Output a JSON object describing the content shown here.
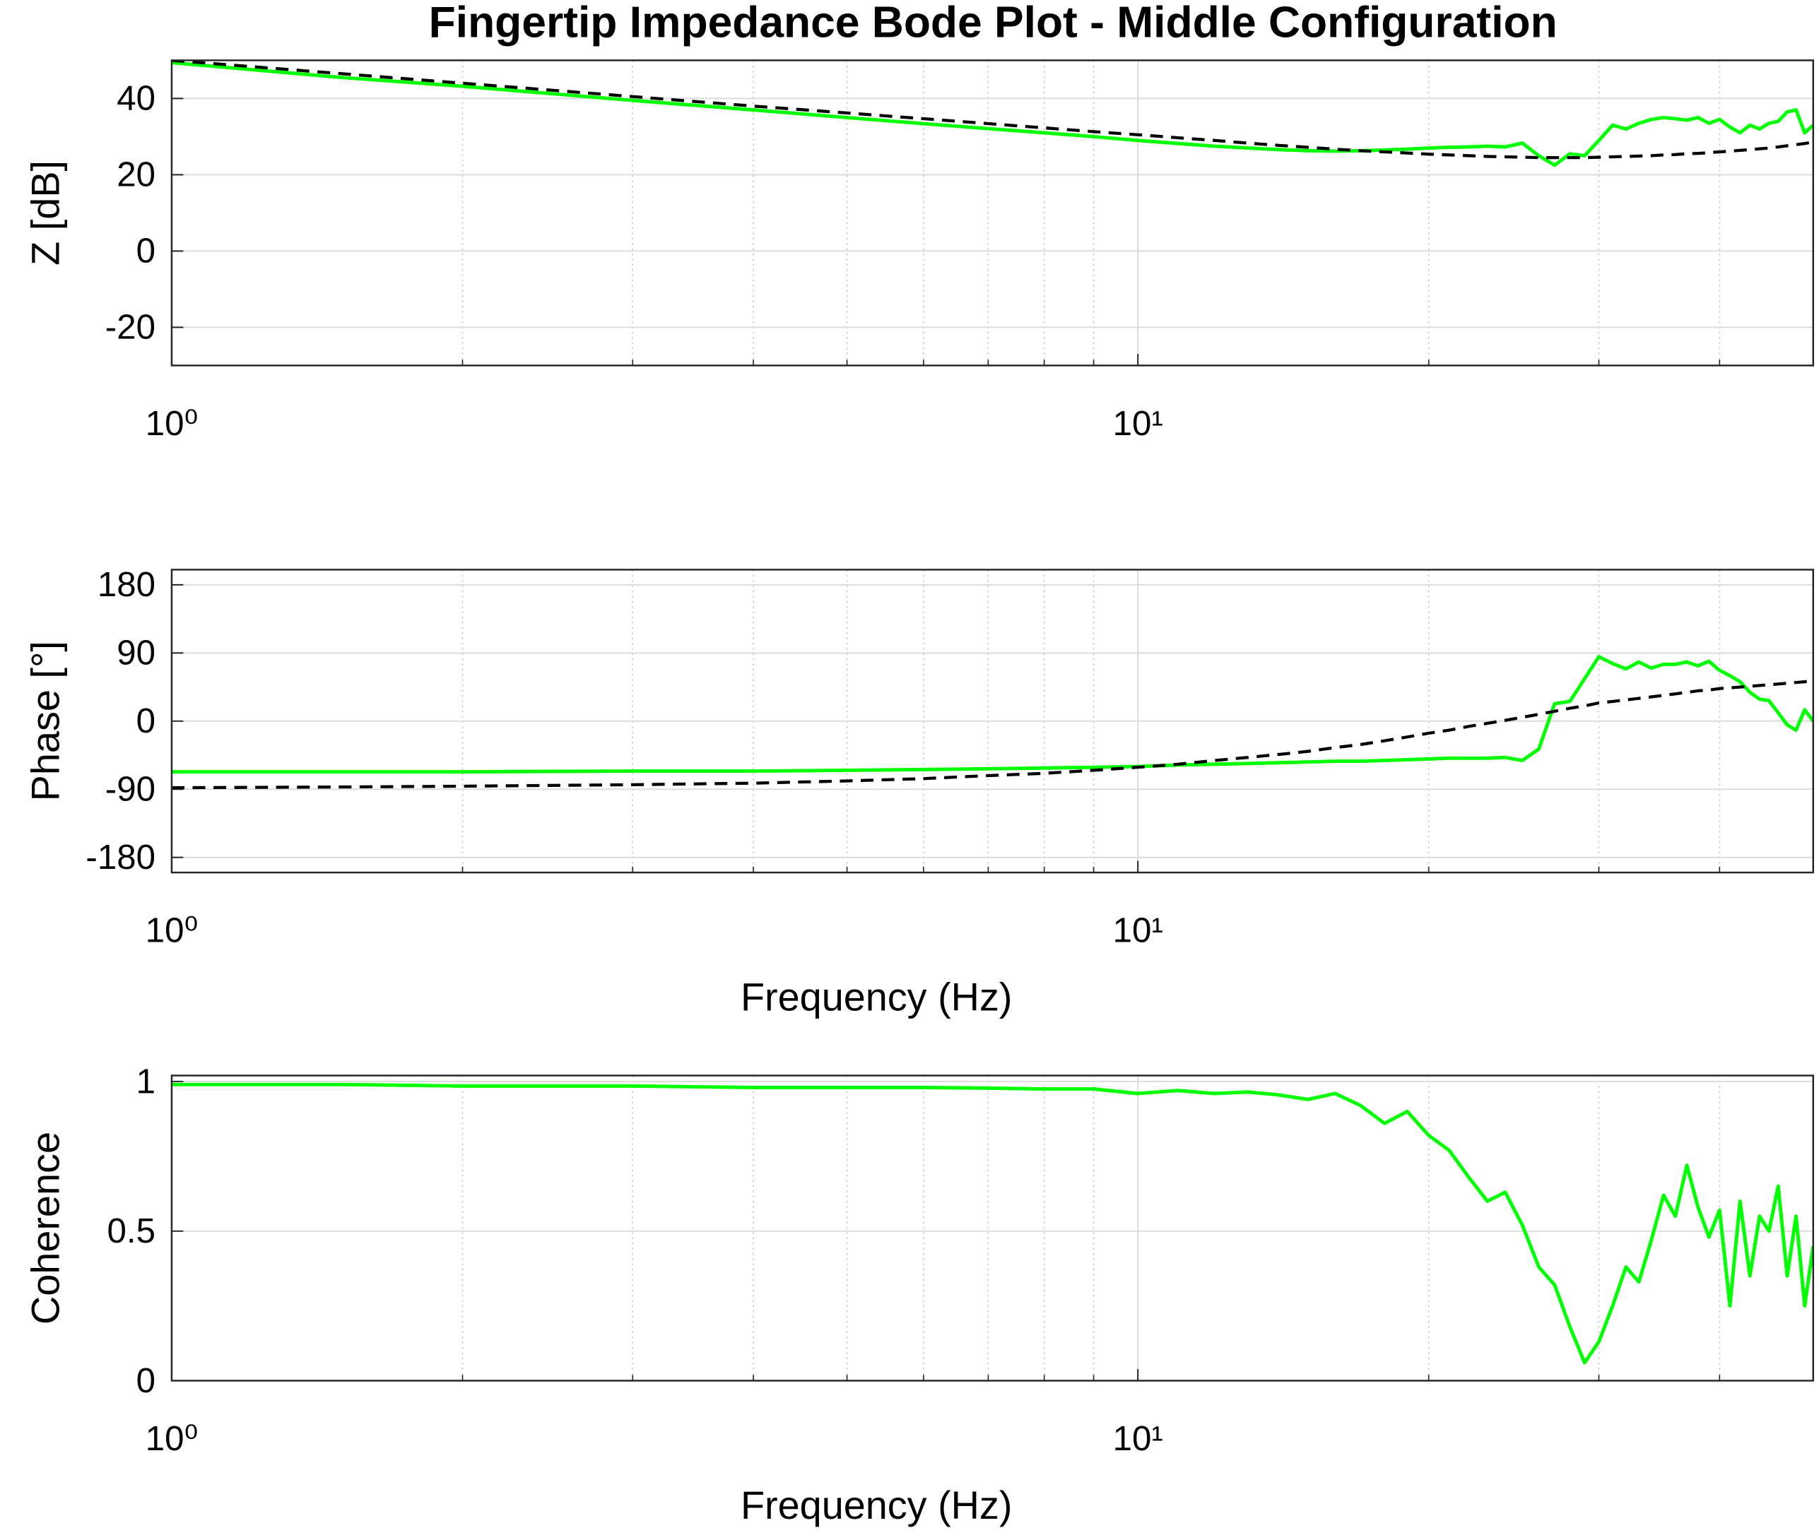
{
  "chart_data": [
    {
      "type": "line",
      "title": "Fingertip Impedance Bode Plot - Middle Configuration",
      "ylabel": "Z [dB]",
      "log_x": true,
      "grid": true,
      "xlim": [
        1,
        50
      ],
      "xticks": [
        {
          "value": 1,
          "label": "10⁰"
        },
        {
          "value": 10,
          "label": "10¹"
        }
      ],
      "xminorticks": [
        2,
        3,
        4,
        5,
        6,
        7,
        8,
        9,
        20,
        30,
        40
      ],
      "ylim": [
        -30,
        50
      ],
      "yticks": [
        -20,
        0,
        20,
        40
      ],
      "x": [
        1,
        1.5,
        2,
        3,
        4,
        5,
        6,
        7,
        8,
        9,
        10,
        11,
        12,
        13,
        14,
        15,
        16,
        17,
        18,
        19,
        20,
        21,
        22,
        23,
        24,
        25,
        26,
        27,
        28,
        29,
        30,
        31,
        32,
        33,
        34,
        35,
        36,
        37,
        38,
        39,
        40,
        41,
        42,
        43,
        44,
        45,
        46,
        47,
        48,
        49,
        50
      ],
      "series": [
        {
          "color": "#00ff00",
          "values": [
            49.4,
            45.5,
            43.2,
            39.5,
            37,
            35,
            33.4,
            32.1,
            31,
            30,
            29,
            28.2,
            27.5,
            27,
            26.6,
            26.3,
            26.2,
            26.3,
            26.5,
            26.7,
            27,
            27.2,
            27.3,
            27.5,
            27.3,
            28.3,
            25,
            22.5,
            25.5,
            25,
            29,
            33,
            32,
            33.5,
            34.5,
            35,
            34.7,
            34.3,
            35,
            33.5,
            34.5,
            32.5,
            31,
            33,
            32,
            33.5,
            34,
            36.5,
            37,
            31,
            33
          ]
        },
        {
          "color": "#000000",
          "dash": true,
          "values": [
            50,
            46.5,
            44,
            40.5,
            38,
            36.2,
            34.7,
            33.4,
            32.3,
            31.3,
            30.5,
            29.7,
            29,
            28.3,
            27.7,
            27.2,
            26.7,
            26.3,
            26,
            25.7,
            25.4,
            25.2,
            25,
            24.8,
            24.7,
            24.6,
            24.5,
            24.5,
            24.5,
            24.5,
            24.6,
            24.7,
            24.8,
            24.9,
            25,
            25.2,
            25.3,
            25.5,
            25.6,
            25.8,
            26,
            26.2,
            26.4,
            26.6,
            26.8,
            27,
            27.3,
            27.6,
            27.9,
            28.2,
            28.6
          ]
        }
      ]
    },
    {
      "type": "line",
      "ylabel": "Phase [°]",
      "xlabel": "Frequency (Hz)",
      "log_x": true,
      "grid": true,
      "xlim": [
        1,
        50
      ],
      "xticks": [
        {
          "value": 1,
          "label": "10⁰"
        },
        {
          "value": 10,
          "label": "10¹"
        }
      ],
      "xminorticks": [
        2,
        3,
        4,
        5,
        6,
        7,
        8,
        9,
        20,
        30,
        40
      ],
      "ylim": [
        -200,
        200
      ],
      "yticks": [
        -180,
        -90,
        0,
        90,
        180
      ],
      "x": [
        1,
        1.5,
        2,
        3,
        4,
        5,
        6,
        7,
        8,
        9,
        10,
        11,
        12,
        13,
        14,
        15,
        16,
        17,
        18,
        19,
        20,
        21,
        22,
        23,
        24,
        25,
        26,
        27,
        28,
        29,
        30,
        31,
        32,
        33,
        34,
        35,
        36,
        37,
        38,
        39,
        40,
        41,
        42,
        43,
        44,
        45,
        46,
        47,
        48,
        49,
        50
      ],
      "series": [
        {
          "color": "#00ff00",
          "values": [
            -67,
            -67,
            -67,
            -66,
            -66,
            -65,
            -64,
            -63,
            -62,
            -61,
            -60,
            -58,
            -57,
            -56,
            -55,
            -54,
            -53,
            -53,
            -52,
            -51,
            -50,
            -49,
            -49,
            -49,
            -48,
            -52,
            -37,
            23,
            26,
            56,
            85,
            76,
            69,
            78,
            70,
            75,
            75,
            78,
            73,
            79,
            67,
            60,
            52,
            38,
            29,
            27,
            11,
            -5,
            -12,
            15,
            0
          ]
        },
        {
          "color": "#000000",
          "dash": true,
          "values": [
            -88,
            -87,
            -86,
            -84,
            -82,
            -79,
            -76,
            -72,
            -69,
            -65,
            -61,
            -57,
            -52,
            -48,
            -44,
            -40,
            -35,
            -31,
            -26,
            -21,
            -16,
            -12,
            -7,
            -3,
            1,
            5,
            9,
            13,
            17,
            20,
            24,
            26,
            28,
            30,
            32,
            34,
            36,
            38,
            40,
            41,
            43,
            44,
            45,
            46,
            47,
            48,
            49,
            50,
            51,
            52,
            53
          ]
        }
      ]
    },
    {
      "type": "line",
      "ylabel": "Coherence",
      "xlabel": "Frequency (Hz)",
      "log_x": true,
      "grid": true,
      "xlim": [
        1,
        50
      ],
      "xticks": [
        {
          "value": 1,
          "label": "10⁰"
        },
        {
          "value": 10,
          "label": "10¹"
        }
      ],
      "xminorticks": [
        2,
        3,
        4,
        5,
        6,
        7,
        8,
        9,
        20,
        30,
        40
      ],
      "ylim": [
        0,
        1.02
      ],
      "yticks": [
        0,
        0.5,
        1
      ],
      "x": [
        1,
        1.5,
        2,
        3,
        4,
        5,
        6,
        7,
        8,
        9,
        10,
        11,
        12,
        13,
        14,
        15,
        16,
        17,
        18,
        19,
        20,
        21,
        22,
        23,
        24,
        25,
        26,
        27,
        28,
        29,
        30,
        31,
        32,
        33,
        34,
        35,
        36,
        37,
        38,
        39,
        40,
        41,
        42,
        43,
        44,
        45,
        46,
        47,
        48,
        49,
        50
      ],
      "series": [
        {
          "color": "#00ff00",
          "values": [
            0.99,
            0.99,
            0.985,
            0.985,
            0.98,
            0.98,
            0.98,
            0.978,
            0.975,
            0.975,
            0.96,
            0.97,
            0.96,
            0.965,
            0.955,
            0.94,
            0.96,
            0.92,
            0.86,
            0.9,
            0.82,
            0.77,
            0.68,
            0.6,
            0.63,
            0.52,
            0.38,
            0.32,
            0.18,
            0.06,
            0.13,
            0.25,
            0.38,
            0.33,
            0.47,
            0.62,
            0.55,
            0.72,
            0.58,
            0.48,
            0.57,
            0.25,
            0.6,
            0.35,
            0.55,
            0.5,
            0.65,
            0.35,
            0.55,
            0.25,
            0.45
          ]
        }
      ]
    }
  ]
}
